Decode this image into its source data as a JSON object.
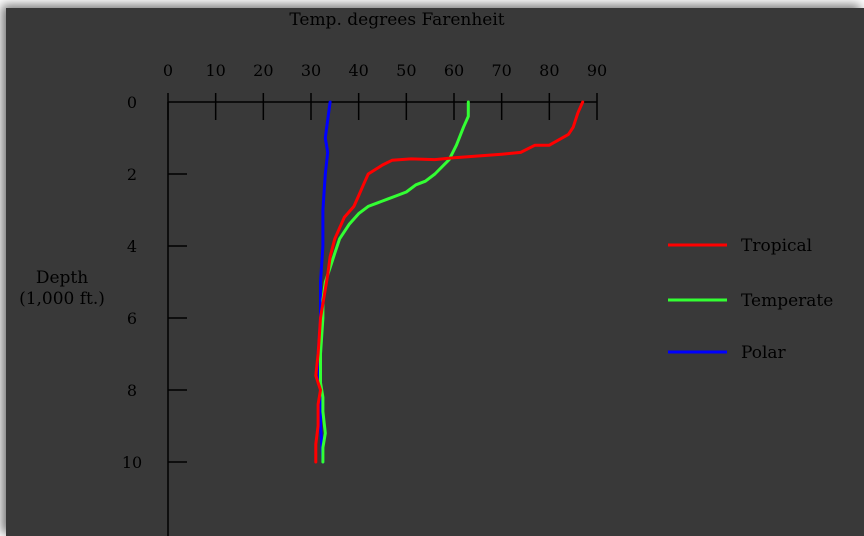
{
  "colors": {
    "background": "#393939",
    "axis": "#000000",
    "text": "#000000"
  },
  "chart_data": {
    "type": "line",
    "title": "Temp.  degrees Farenheit",
    "xlabel": "Temp.  degrees Farenheit",
    "ylabel_lines": [
      "Depth",
      "(1,000 ft.)"
    ],
    "x_axis_position": "top",
    "xlim": [
      0,
      90
    ],
    "ylim": [
      0,
      12
    ],
    "y_inverted": true,
    "x_ticks": [
      0,
      10,
      20,
      30,
      40,
      50,
      60,
      70,
      80,
      90
    ],
    "y_ticks": [
      0,
      2,
      4,
      6,
      8,
      10
    ],
    "grid": false,
    "legend_position": "right",
    "series": [
      {
        "name": "Tropical",
        "color": "#ff0000",
        "points": [
          {
            "x": 87,
            "y": 0
          },
          {
            "x": 86,
            "y": 0.3
          },
          {
            "x": 85,
            "y": 0.7
          },
          {
            "x": 84,
            "y": 0.9
          },
          {
            "x": 80,
            "y": 1.2
          },
          {
            "x": 77,
            "y": 1.2
          },
          {
            "x": 74,
            "y": 1.4
          },
          {
            "x": 70,
            "y": 1.45
          },
          {
            "x": 60,
            "y": 1.55
          },
          {
            "x": 56,
            "y": 1.6
          },
          {
            "x": 51,
            "y": 1.58
          },
          {
            "x": 47,
            "y": 1.62
          },
          {
            "x": 45,
            "y": 1.75
          },
          {
            "x": 42,
            "y": 2.0
          },
          {
            "x": 41,
            "y": 2.3
          },
          {
            "x": 40,
            "y": 2.6
          },
          {
            "x": 39,
            "y": 2.9
          },
          {
            "x": 37,
            "y": 3.2
          },
          {
            "x": 36,
            "y": 3.5
          },
          {
            "x": 35,
            "y": 3.8
          },
          {
            "x": 34,
            "y": 4.3
          },
          {
            "x": 33.5,
            "y": 4.8
          },
          {
            "x": 33,
            "y": 5.2
          },
          {
            "x": 32.5,
            "y": 5.6
          },
          {
            "x": 32,
            "y": 6.0
          },
          {
            "x": 31.5,
            "y": 7.0
          },
          {
            "x": 31,
            "y": 7.6
          },
          {
            "x": 32,
            "y": 8.0
          },
          {
            "x": 31.5,
            "y": 8.4
          },
          {
            "x": 31.5,
            "y": 9.0
          },
          {
            "x": 31,
            "y": 9.5
          },
          {
            "x": 31,
            "y": 10.0
          }
        ]
      },
      {
        "name": "Temperate",
        "color": "#33ff33",
        "points": [
          {
            "x": 63,
            "y": 0
          },
          {
            "x": 63,
            "y": 0.4
          },
          {
            "x": 62,
            "y": 0.7
          },
          {
            "x": 60.5,
            "y": 1.2
          },
          {
            "x": 59,
            "y": 1.6
          },
          {
            "x": 56,
            "y": 2.0
          },
          {
            "x": 54,
            "y": 2.2
          },
          {
            "x": 52,
            "y": 2.3
          },
          {
            "x": 50,
            "y": 2.5
          },
          {
            "x": 48,
            "y": 2.6
          },
          {
            "x": 46,
            "y": 2.7
          },
          {
            "x": 44,
            "y": 2.8
          },
          {
            "x": 42,
            "y": 2.9
          },
          {
            "x": 40,
            "y": 3.1
          },
          {
            "x": 38,
            "y": 3.4
          },
          {
            "x": 36,
            "y": 3.8
          },
          {
            "x": 35,
            "y": 4.2
          },
          {
            "x": 34,
            "y": 4.6
          },
          {
            "x": 33,
            "y": 5.0
          },
          {
            "x": 32.5,
            "y": 5.5
          },
          {
            "x": 32.5,
            "y": 6.0
          },
          {
            "x": 32,
            "y": 7.0
          },
          {
            "x": 32,
            "y": 7.8
          },
          {
            "x": 32.5,
            "y": 8.2
          },
          {
            "x": 32.5,
            "y": 8.6
          },
          {
            "x": 33,
            "y": 9.2
          },
          {
            "x": 32.5,
            "y": 9.6
          },
          {
            "x": 32.5,
            "y": 10.0
          }
        ]
      },
      {
        "name": "Polar",
        "color": "#0000ff",
        "points": [
          {
            "x": 34,
            "y": 0
          },
          {
            "x": 33.5,
            "y": 0.5
          },
          {
            "x": 33,
            "y": 1.0
          },
          {
            "x": 33.5,
            "y": 1.4
          },
          {
            "x": 33,
            "y": 2.0
          },
          {
            "x": 32.5,
            "y": 3.0
          },
          {
            "x": 32.5,
            "y": 4.0
          },
          {
            "x": 32,
            "y": 5.0
          },
          {
            "x": 32,
            "y": 6.0
          },
          {
            "x": 31.5,
            "y": 7.0
          },
          {
            "x": 32,
            "y": 8.0
          },
          {
            "x": 32,
            "y": 9.0
          },
          {
            "x": 32.5,
            "y": 10.0
          }
        ]
      }
    ]
  }
}
